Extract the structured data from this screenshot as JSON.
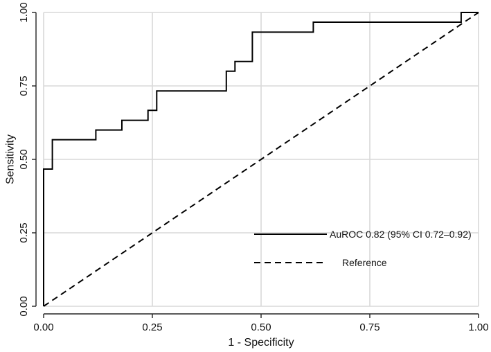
{
  "chart_data": {
    "type": "line",
    "title": "",
    "xlabel": "1 - Specificity",
    "ylabel": "Sensitivity",
    "xlim": [
      0,
      1
    ],
    "ylim": [
      0,
      1
    ],
    "xticks": [
      "0.00",
      "0.25",
      "0.50",
      "0.75",
      "1.00"
    ],
    "yticks": [
      "0.00",
      "0.25",
      "0.50",
      "0.75",
      "1.00"
    ],
    "grid": true,
    "legend_position": "inside-bottom-right",
    "series": [
      {
        "name": "AuROC 0.82 (95% CI 0.72–0.92)",
        "style": "solid",
        "color": "#000000",
        "x": [
          0,
          0,
          0.02,
          0.02,
          0.12,
          0.12,
          0.18,
          0.18,
          0.24,
          0.24,
          0.26,
          0.26,
          0.42,
          0.42,
          0.44,
          0.44,
          0.48,
          0.48,
          0.62,
          0.62,
          0.96,
          0.96,
          1.0
        ],
        "y": [
          0,
          0.467,
          0.467,
          0.567,
          0.567,
          0.6,
          0.6,
          0.633,
          0.633,
          0.667,
          0.667,
          0.733,
          0.733,
          0.8,
          0.8,
          0.833,
          0.833,
          0.933,
          0.933,
          0.967,
          0.967,
          1.0,
          1.0
        ]
      },
      {
        "name": "Reference",
        "style": "dashed",
        "color": "#000000",
        "x": [
          0,
          1
        ],
        "y": [
          0,
          1
        ]
      }
    ]
  }
}
